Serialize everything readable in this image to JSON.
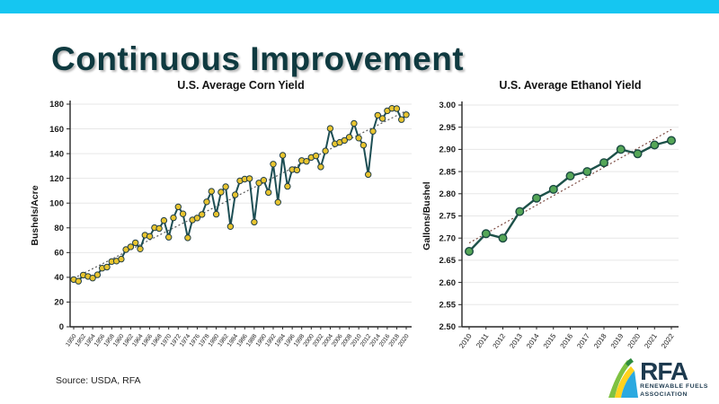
{
  "slide": {
    "title": "Continuous Improvement",
    "title_color": "#0f3a40",
    "top_bar_color": "#15c6f1",
    "source_note": "Source: USDA, RFA"
  },
  "logo": {
    "acronym": "RFA",
    "line1": "RENEWABLE FUELS",
    "line2": "ASSOCIATION",
    "text_color": "#1d3a4f",
    "swoosh_colors": {
      "dark_green": "#2e8b3d",
      "light_green": "#7fc242",
      "yellow": "#ffd21e",
      "blue": "#2aa9e0"
    }
  },
  "chart_data": [
    {
      "type": "line",
      "title": "U.S. Average Corn Yield",
      "ylabel": "Bushels/Acre",
      "ylim": [
        0,
        180
      ],
      "ytick_step": 20,
      "y_decimals": 0,
      "xtick_every": 2,
      "grid": true,
      "trendline": true,
      "line_color": "#1d4e54",
      "marker_color": "#e8c42f",
      "marker_edge": "#233f46",
      "trend_color": "#5a5a5a",
      "grid_color": "#e7e7e7",
      "x": [
        1950,
        1951,
        1952,
        1953,
        1954,
        1955,
        1956,
        1957,
        1958,
        1959,
        1960,
        1961,
        1962,
        1963,
        1964,
        1965,
        1966,
        1967,
        1968,
        1969,
        1970,
        1971,
        1972,
        1973,
        1974,
        1975,
        1976,
        1977,
        1978,
        1979,
        1980,
        1981,
        1982,
        1983,
        1984,
        1985,
        1986,
        1987,
        1988,
        1989,
        1990,
        1991,
        1992,
        1993,
        1994,
        1995,
        1996,
        1997,
        1998,
        1999,
        2000,
        2001,
        2002,
        2003,
        2004,
        2005,
        2006,
        2007,
        2008,
        2009,
        2010,
        2011,
        2012,
        2013,
        2014,
        2015,
        2016,
        2017,
        2018,
        2019,
        2020
      ],
      "values": [
        38.2,
        36.9,
        41.8,
        40.7,
        39.4,
        42.0,
        47.4,
        48.3,
        52.8,
        53.1,
        54.7,
        62.4,
        64.7,
        67.9,
        62.9,
        74.1,
        73.1,
        80.1,
        79.5,
        85.9,
        72.4,
        88.1,
        97.0,
        91.3,
        71.9,
        86.4,
        88.0,
        90.8,
        101.0,
        109.5,
        91.0,
        108.9,
        113.2,
        81.1,
        106.7,
        118.0,
        119.4,
        119.8,
        84.6,
        116.3,
        118.5,
        108.6,
        131.5,
        100.7,
        138.6,
        113.5,
        127.1,
        126.7,
        134.4,
        133.8,
        136.9,
        138.2,
        129.3,
        142.2,
        160.3,
        147.9,
        149.1,
        150.7,
        153.3,
        164.4,
        152.6,
        146.8,
        123.1,
        158.1,
        171.0,
        168.4,
        174.6,
        176.6,
        176.4,
        167.5,
        171.4
      ]
    },
    {
      "type": "line",
      "title": "U.S. Average Ethanol Yield",
      "ylabel": "Gallons/Bushel",
      "ylim": [
        2.5,
        3.0
      ],
      "ytick_step": 0.05,
      "y_decimals": 2,
      "xtick_every": 1,
      "grid": true,
      "trendline": true,
      "line_color": "#1d5149",
      "marker_color": "#55a657",
      "marker_edge": "#1b4a42",
      "trend_color": "#7c4a41",
      "grid_color": "#e7e7e7",
      "x": [
        2010,
        2011,
        2012,
        2013,
        2014,
        2015,
        2016,
        2017,
        2018,
        2019,
        2020,
        2021,
        2022
      ],
      "values": [
        2.67,
        2.71,
        2.7,
        2.76,
        2.79,
        2.81,
        2.84,
        2.85,
        2.87,
        2.9,
        2.89,
        2.91,
        2.92
      ]
    }
  ]
}
